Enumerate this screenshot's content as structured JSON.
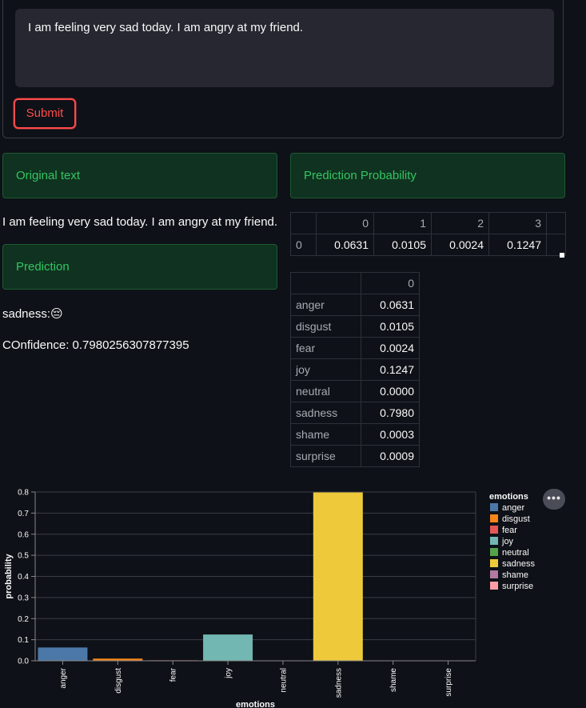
{
  "form": {
    "input_value": "I am feeling very sad today. I am angry at my friend.",
    "submit_label": "Submit"
  },
  "left": {
    "original_header": "Original text",
    "original_text": "I am feeling very sad today. I am angry at my friend.",
    "prediction_header": "Prediction",
    "prediction_text": "sadness:",
    "prediction_emoji": "😔",
    "confidence_text": "COnfidence: 0.7980256307877395"
  },
  "right": {
    "probability_header": "Prediction Probability",
    "prob_table": {
      "columns": [
        "0",
        "1",
        "2",
        "3"
      ],
      "row_label": "0",
      "values": [
        "0.0631",
        "0.0105",
        "0.0024",
        "0.1247"
      ]
    },
    "emotion_table": {
      "column": "0",
      "rows": [
        {
          "label": "anger",
          "value": "0.0631"
        },
        {
          "label": "disgust",
          "value": "0.0105"
        },
        {
          "label": "fear",
          "value": "0.0024"
        },
        {
          "label": "joy",
          "value": "0.1247"
        },
        {
          "label": "neutral",
          "value": "0.0000"
        },
        {
          "label": "sadness",
          "value": "0.7980"
        },
        {
          "label": "shame",
          "value": "0.0003"
        },
        {
          "label": "surprise",
          "value": "0.0009"
        }
      ]
    }
  },
  "chart_data": {
    "type": "bar",
    "categories": [
      "anger",
      "disgust",
      "fear",
      "joy",
      "neutral",
      "sadness",
      "shame",
      "surprise"
    ],
    "values": [
      0.0631,
      0.0105,
      0.0024,
      0.1247,
      0.0,
      0.798,
      0.0003,
      0.0009
    ],
    "colors": [
      "#4c78a8",
      "#f58518",
      "#e45756",
      "#72b7b2",
      "#54a24b",
      "#eeca3b",
      "#b279a2",
      "#ff9da6"
    ],
    "xlabel": "emotions",
    "ylabel": "probability",
    "ylim": [
      0,
      0.8
    ],
    "yticks": [
      "0.0",
      "0.1",
      "0.2",
      "0.3",
      "0.4",
      "0.5",
      "0.6",
      "0.7",
      "0.8"
    ],
    "legend_title": "emotions",
    "legend_placement": "right",
    "grid": true,
    "menu_label": "•••"
  }
}
